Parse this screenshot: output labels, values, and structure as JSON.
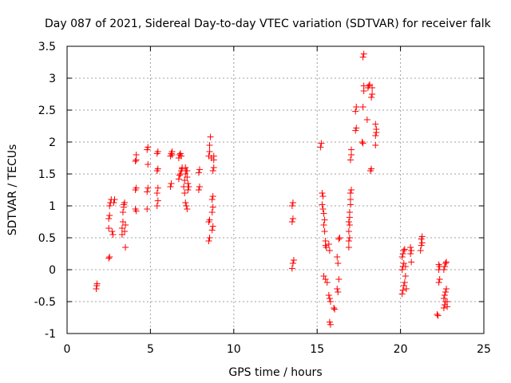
{
  "chart_data": {
    "type": "scatter",
    "title": "Day 087 of 2021, Sidereal Day-to-day VTEC variation (SDTVAR) for receiver falk",
    "xlabel": "GPS time / hours",
    "ylabel": "SDTVAR / TECUs",
    "xlim": [
      0,
      25
    ],
    "ylim": [
      -1,
      3.5
    ],
    "xticks": [
      0,
      5,
      10,
      15,
      20,
      25
    ],
    "xtick_labels": [
      "0",
      "5",
      "10",
      "15",
      "20",
      "25"
    ],
    "yticks": [
      -1,
      -0.5,
      0,
      0.5,
      1,
      1.5,
      2,
      2.5,
      3,
      3.5
    ],
    "ytick_labels": [
      "-1",
      "-0.5",
      "0",
      "0.5",
      "1",
      "1.5",
      "2",
      "2.5",
      "3",
      "3.5"
    ],
    "grid": true,
    "marker": "+",
    "series": [
      {
        "name": "SDTVAR",
        "color": "#ff0000",
        "points": [
          [
            1.75,
            -0.3
          ],
          [
            1.78,
            -0.25
          ],
          [
            1.8,
            -0.22
          ],
          [
            2.5,
            0.18
          ],
          [
            2.55,
            0.2
          ],
          [
            2.5,
            0.65
          ],
          [
            2.5,
            0.8
          ],
          [
            2.55,
            0.85
          ],
          [
            2.55,
            1.0
          ],
          [
            2.6,
            1.05
          ],
          [
            2.65,
            1.1
          ],
          [
            2.7,
            0.6
          ],
          [
            2.75,
            0.55
          ],
          [
            2.8,
            1.05
          ],
          [
            2.85,
            1.1
          ],
          [
            3.3,
            0.55
          ],
          [
            3.3,
            0.65
          ],
          [
            3.35,
            0.75
          ],
          [
            3.35,
            0.9
          ],
          [
            3.4,
            0.98
          ],
          [
            3.4,
            1.02
          ],
          [
            3.45,
            1.05
          ],
          [
            3.45,
            0.6
          ],
          [
            3.5,
            0.7
          ],
          [
            3.5,
            0.35
          ],
          [
            4.1,
            0.95
          ],
          [
            4.15,
            0.92
          ],
          [
            4.1,
            1.25
          ],
          [
            4.15,
            1.28
          ],
          [
            4.1,
            1.7
          ],
          [
            4.15,
            1.72
          ],
          [
            4.15,
            1.8
          ],
          [
            4.8,
            0.95
          ],
          [
            4.8,
            1.22
          ],
          [
            4.85,
            1.28
          ],
          [
            4.85,
            1.65
          ],
          [
            4.8,
            1.88
          ],
          [
            4.85,
            1.92
          ],
          [
            5.4,
            1.0
          ],
          [
            5.45,
            1.08
          ],
          [
            5.4,
            1.2
          ],
          [
            5.45,
            1.28
          ],
          [
            5.4,
            1.55
          ],
          [
            5.45,
            1.58
          ],
          [
            5.4,
            1.82
          ],
          [
            5.45,
            1.85
          ],
          [
            6.2,
            1.3
          ],
          [
            6.25,
            1.35
          ],
          [
            6.2,
            1.78
          ],
          [
            6.25,
            1.82
          ],
          [
            6.3,
            1.8
          ],
          [
            6.3,
            1.85
          ],
          [
            6.7,
            1.42
          ],
          [
            6.75,
            1.48
          ],
          [
            6.8,
            1.5
          ],
          [
            6.85,
            1.55
          ],
          [
            6.9,
            1.58
          ],
          [
            6.7,
            1.75
          ],
          [
            6.75,
            1.8
          ],
          [
            6.8,
            1.82
          ],
          [
            6.85,
            1.78
          ],
          [
            6.9,
            1.6
          ],
          [
            7.0,
            1.3
          ],
          [
            7.05,
            1.4
          ],
          [
            7.1,
            1.5
          ],
          [
            7.15,
            1.55
          ],
          [
            7.2,
            1.45
          ],
          [
            7.25,
            1.35
          ],
          [
            7.05,
            1.2
          ],
          [
            7.1,
            1.05
          ],
          [
            7.15,
            1.0
          ],
          [
            7.2,
            0.95
          ],
          [
            7.25,
            1.25
          ],
          [
            7.3,
            1.3
          ],
          [
            7.1,
            1.6
          ],
          [
            7.2,
            1.55
          ],
          [
            7.9,
            1.25
          ],
          [
            7.95,
            1.3
          ],
          [
            7.9,
            1.52
          ],
          [
            7.95,
            1.57
          ],
          [
            8.5,
            0.45
          ],
          [
            8.55,
            0.5
          ],
          [
            8.5,
            0.75
          ],
          [
            8.55,
            0.78
          ],
          [
            8.5,
            1.78
          ],
          [
            8.55,
            1.85
          ],
          [
            8.55,
            1.95
          ],
          [
            8.6,
            2.08
          ],
          [
            8.65,
            1.75
          ],
          [
            8.7,
            0.62
          ],
          [
            8.75,
            0.68
          ],
          [
            8.7,
            0.9
          ],
          [
            8.75,
            0.98
          ],
          [
            8.7,
            1.1
          ],
          [
            8.75,
            1.15
          ],
          [
            8.75,
            1.55
          ],
          [
            8.8,
            1.6
          ],
          [
            8.8,
            1.72
          ],
          [
            8.8,
            1.78
          ],
          [
            13.5,
            0.02
          ],
          [
            13.55,
            0.1
          ],
          [
            13.6,
            0.15
          ],
          [
            13.5,
            0.75
          ],
          [
            13.55,
            0.8
          ],
          [
            13.5,
            1.0
          ],
          [
            13.55,
            1.05
          ],
          [
            15.2,
            1.92
          ],
          [
            15.25,
            1.98
          ],
          [
            15.3,
            1.2
          ],
          [
            15.35,
            1.15
          ],
          [
            15.3,
            1.02
          ],
          [
            15.35,
            0.95
          ],
          [
            15.4,
            0.88
          ],
          [
            15.45,
            0.78
          ],
          [
            15.4,
            0.7
          ],
          [
            15.45,
            0.6
          ],
          [
            15.5,
            0.45
          ],
          [
            15.5,
            0.38
          ],
          [
            15.55,
            0.35
          ],
          [
            15.4,
            -0.1
          ],
          [
            15.5,
            -0.15
          ],
          [
            15.6,
            -0.2
          ],
          [
            15.7,
            0.4
          ],
          [
            15.75,
            0.3
          ],
          [
            15.7,
            -0.4
          ],
          [
            15.75,
            -0.45
          ],
          [
            15.8,
            -0.5
          ],
          [
            15.75,
            -0.82
          ],
          [
            15.8,
            -0.86
          ],
          [
            16.0,
            -0.6
          ],
          [
            16.05,
            -0.62
          ],
          [
            16.2,
            0.2
          ],
          [
            16.25,
            0.1
          ],
          [
            16.2,
            -0.3
          ],
          [
            16.25,
            -0.35
          ],
          [
            16.3,
            -0.15
          ],
          [
            16.3,
            0.48
          ],
          [
            16.35,
            0.5
          ],
          [
            16.9,
            0.35
          ],
          [
            16.9,
            0.45
          ],
          [
            16.95,
            0.5
          ],
          [
            16.9,
            0.6
          ],
          [
            16.95,
            0.7
          ],
          [
            16.9,
            0.75
          ],
          [
            16.95,
            0.82
          ],
          [
            16.95,
            0.9
          ],
          [
            17.0,
            1.02
          ],
          [
            17.0,
            1.1
          ],
          [
            17.0,
            1.2
          ],
          [
            17.05,
            1.25
          ],
          [
            17.0,
            1.72
          ],
          [
            17.05,
            1.8
          ],
          [
            17.05,
            1.88
          ],
          [
            17.3,
            2.18
          ],
          [
            17.35,
            2.22
          ],
          [
            17.3,
            2.48
          ],
          [
            17.35,
            2.55
          ],
          [
            17.7,
            2.0
          ],
          [
            17.75,
            1.98
          ],
          [
            17.75,
            2.55
          ],
          [
            17.8,
            2.8
          ],
          [
            17.8,
            2.88
          ],
          [
            17.75,
            3.33
          ],
          [
            17.8,
            3.38
          ],
          [
            18.0,
            2.35
          ],
          [
            18.05,
            2.85
          ],
          [
            18.1,
            2.88
          ],
          [
            18.15,
            2.9
          ],
          [
            18.2,
            1.55
          ],
          [
            18.25,
            1.58
          ],
          [
            18.25,
            2.7
          ],
          [
            18.3,
            2.75
          ],
          [
            18.3,
            2.85
          ],
          [
            18.5,
            1.95
          ],
          [
            18.5,
            2.1
          ],
          [
            18.55,
            2.15
          ],
          [
            18.55,
            2.2
          ],
          [
            18.5,
            2.28
          ],
          [
            20.1,
            -0.38
          ],
          [
            20.15,
            -0.32
          ],
          [
            20.2,
            -0.25
          ],
          [
            20.25,
            -0.2
          ],
          [
            20.3,
            -0.1
          ],
          [
            20.1,
            0.0
          ],
          [
            20.15,
            0.05
          ],
          [
            20.2,
            0.1
          ],
          [
            20.1,
            0.2
          ],
          [
            20.15,
            0.25
          ],
          [
            20.2,
            0.3
          ],
          [
            20.25,
            0.32
          ],
          [
            20.3,
            0.05
          ],
          [
            20.35,
            -0.3
          ],
          [
            20.6,
            0.25
          ],
          [
            20.65,
            0.3
          ],
          [
            20.6,
            0.35
          ],
          [
            20.65,
            0.12
          ],
          [
            21.2,
            0.3
          ],
          [
            21.25,
            0.38
          ],
          [
            21.3,
            0.42
          ],
          [
            21.25,
            0.48
          ],
          [
            21.3,
            0.52
          ],
          [
            22.2,
            -0.7
          ],
          [
            22.25,
            -0.72
          ],
          [
            22.3,
            -0.2
          ],
          [
            22.35,
            -0.15
          ],
          [
            22.3,
            0.0
          ],
          [
            22.35,
            0.05
          ],
          [
            22.3,
            0.08
          ],
          [
            22.6,
            -0.6
          ],
          [
            22.65,
            -0.55
          ],
          [
            22.7,
            -0.5
          ],
          [
            22.6,
            -0.45
          ],
          [
            22.65,
            -0.4
          ],
          [
            22.7,
            -0.35
          ],
          [
            22.75,
            -0.3
          ],
          [
            22.6,
            0.0
          ],
          [
            22.65,
            0.05
          ],
          [
            22.7,
            0.1
          ],
          [
            22.75,
            0.12
          ],
          [
            22.8,
            -0.5
          ],
          [
            22.8,
            -0.58
          ]
        ]
      }
    ]
  }
}
